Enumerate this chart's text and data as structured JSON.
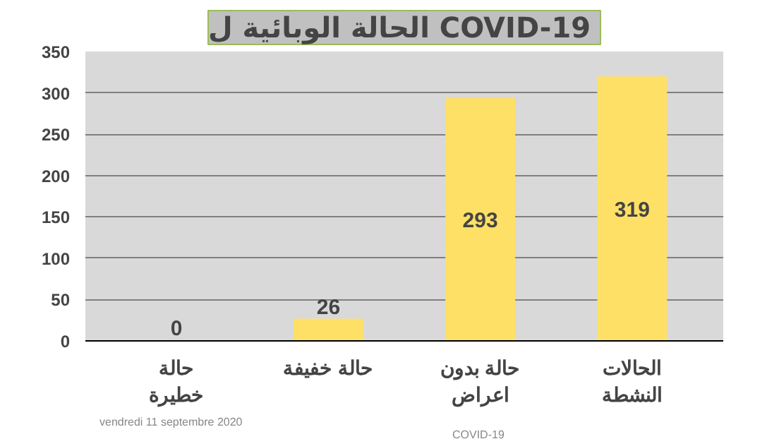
{
  "chart_data": {
    "type": "bar",
    "title": "الحالة الوبائية ل  COVID-19",
    "categories": [
      "حالة\nخطيرة",
      "حالة خفيفة",
      "حالة بدون\nاعراض",
      "الحالات\nالنشطة"
    ],
    "values": [
      0,
      26,
      293,
      319
    ],
    "colors": [
      "#6b0f0f",
      "#ffe066",
      "#ffe066",
      "#ffe066"
    ],
    "ylim": [
      0,
      350
    ],
    "yticks": [
      0,
      50,
      100,
      150,
      200,
      250,
      300,
      350
    ],
    "grid": "y",
    "data_labels": true,
    "annotations": [
      "vendredi 11 septembre 2020",
      "COVID-19"
    ]
  }
}
